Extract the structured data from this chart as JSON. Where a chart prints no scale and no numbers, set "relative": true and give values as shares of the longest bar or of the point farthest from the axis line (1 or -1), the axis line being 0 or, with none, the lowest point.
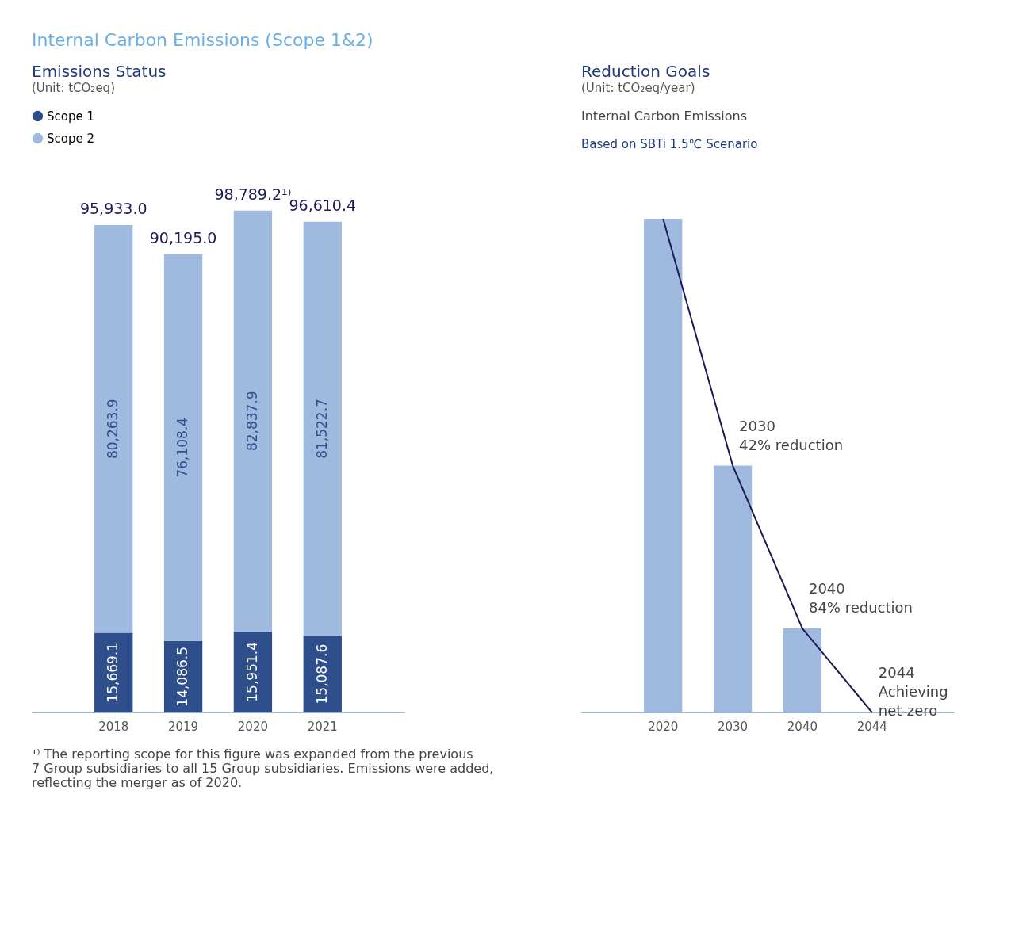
{
  "chart_data": [
    {
      "type": "bar",
      "title": "Emissions Status",
      "subtitle": "(Unit: tCO₂eq)",
      "categories": [
        "2018",
        "2019",
        "2020",
        "2021"
      ],
      "stacked": true,
      "legend": "top left",
      "grid": false,
      "series": [
        {
          "name": "Scope 1",
          "color": "#2e4f8c",
          "values": [
            15669.1,
            14086.5,
            15951.4,
            15087.6
          ],
          "value_labels": [
            "15,669.1",
            "14,086.5",
            "15,951.4",
            "15,087.6"
          ]
        },
        {
          "name": "Scope 2",
          "color": "#a0b9df",
          "values": [
            80263.9,
            76108.4,
            82837.9,
            81522.7
          ],
          "value_labels": [
            "80,263.9",
            "76,108.4",
            "82,837.9",
            "81,522.7"
          ]
        }
      ],
      "totals": [
        "95,933.0",
        "90,195.0",
        "98,789.2¹⁾",
        "96,610.4"
      ],
      "annotations": [
        "Internal Carbon Emissions (Scope 1&2)",
        "¹⁾ The reporting scope for this figure was expanded from the previous\n7 Group subsidiaries to all 15 Group subsidiaries. Emissions were added,\nreflecting the merger as of 2020."
      ]
    },
    {
      "type": "bar",
      "title": "Reduction Goals",
      "subtitle": "(Unit: tCO₂eq/year)",
      "categories": [
        "2020",
        "2030",
        "2040",
        "2044"
      ],
      "relative": true,
      "grid": false,
      "series": [
        {
          "type": "bar",
          "color": "#a0b9df",
          "values": [
            1,
            0.5,
            0.17,
            null
          ]
        },
        {
          "type": "line",
          "color": "#1c1a55",
          "values": [
            1,
            0.5,
            0.17,
            0
          ]
        }
      ],
      "annotations": [
        "Internal Carbon Emissions",
        "Based on SBTi 1.5℃ Scenario",
        {
          "text": "2030\n42% reduction",
          "x": "2030",
          "y": 0.5
        },
        {
          "text": "2040\n84% reduction",
          "x": "2040",
          "y": 0.17
        },
        {
          "text": "2044\nAchieving\nnet-zero",
          "x": "2044",
          "y": 0
        }
      ]
    }
  ]
}
